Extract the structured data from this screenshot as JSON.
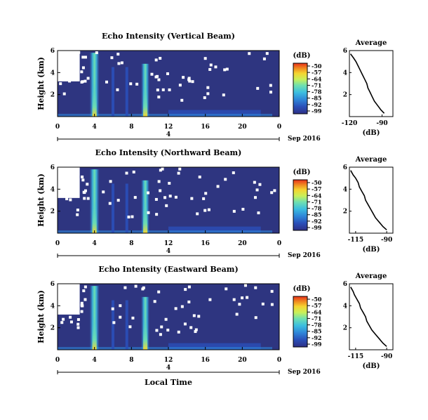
{
  "figure": {
    "xlabel_bottom": "Local Time",
    "day_tick": "4",
    "date_label": "Sep 2016",
    "height_label": "Height (km)",
    "unit_label": "(dB)",
    "average_title": "Average"
  },
  "colors": {
    "background_field": "#2e3580",
    "colorscale": [
      "#2e2f86",
      "#2a4fb8",
      "#2f86d8",
      "#3cbde0",
      "#6fe0b0",
      "#c8f05a",
      "#f5d530",
      "#f08a20",
      "#e8301a"
    ]
  },
  "chart_data": [
    {
      "type": "heatmap",
      "title": "Echo Intensity (Vertical Beam)",
      "xlabel": "",
      "ylabel": "Height (km)",
      "xlim": [
        0,
        24
      ],
      "ylim": [
        0,
        6
      ],
      "xticks": [
        "0",
        "4",
        "8",
        "12",
        "16",
        "20",
        "0"
      ],
      "yticks": [
        "2",
        "4",
        "6"
      ],
      "colorbar": {
        "label": "(dB)",
        "ticks": [
          "-50",
          "-57",
          "-64",
          "-71",
          "-78",
          "-85",
          "-92",
          "-99"
        ],
        "range": [
          -99,
          -50
        ]
      },
      "vertical_streaks_hours": [
        4,
        9.5
      ],
      "average_profile": {
        "title": "Average",
        "xlabel": "(dB)",
        "xticks": [
          "-120",
          "-90"
        ],
        "xlim": [
          -120,
          -80
        ],
        "yticks": [
          "2",
          "4",
          "6"
        ],
        "ylim": [
          0,
          6
        ],
        "heights_km": [
          5.7,
          5.3,
          5.0,
          4.6,
          4.2,
          3.8,
          3.4,
          3.0,
          2.6,
          2.2,
          1.8,
          1.4,
          1.0,
          0.6,
          0.3
        ],
        "values_db": [
          -119,
          -116,
          -114,
          -112,
          -110,
          -108,
          -106,
          -104,
          -103,
          -101,
          -99,
          -97,
          -94,
          -91,
          -88
        ]
      }
    },
    {
      "type": "heatmap",
      "title": "Echo Intensity (Northward Beam)",
      "xlabel": "",
      "ylabel": "Height (km)",
      "xlim": [
        0,
        24
      ],
      "ylim": [
        0,
        6
      ],
      "xticks": [
        "0",
        "4",
        "8",
        "12",
        "16",
        "20",
        "0"
      ],
      "yticks": [
        "2",
        "4",
        "6"
      ],
      "colorbar": {
        "label": "(dB)",
        "ticks": [
          "-50",
          "-57",
          "-64",
          "-71",
          "-78",
          "-85",
          "-92",
          "-99"
        ],
        "range": [
          -99,
          -50
        ]
      },
      "vertical_streaks_hours": [
        4,
        9.5
      ],
      "average_profile": {
        "title": "Average",
        "xlabel": "(dB)",
        "xticks": [
          "-115",
          "-90"
        ],
        "xlim": [
          -120,
          -85
        ],
        "yticks": [
          "2",
          "4",
          "6"
        ],
        "ylim": [
          0,
          6
        ],
        "heights_km": [
          5.7,
          5.3,
          5.0,
          4.6,
          4.2,
          3.8,
          3.4,
          3.0,
          2.6,
          2.2,
          1.8,
          1.4,
          1.0,
          0.6,
          0.3
        ],
        "values_db": [
          -119,
          -117,
          -115,
          -113,
          -112,
          -110,
          -108,
          -107,
          -105,
          -103,
          -101,
          -99,
          -96,
          -93,
          -90
        ]
      }
    },
    {
      "type": "heatmap",
      "title": "Echo Intensity (Eastward Beam)",
      "xlabel": "Local Time",
      "ylabel": "Height (km)",
      "xlim": [
        0,
        24
      ],
      "ylim": [
        0,
        6
      ],
      "xticks": [
        "0",
        "4",
        "8",
        "12",
        "16",
        "20",
        "0"
      ],
      "yticks": [
        "2",
        "4",
        "6"
      ],
      "colorbar": {
        "label": "(dB)",
        "ticks": [
          "-50",
          "-57",
          "-64",
          "-71",
          "-78",
          "-85",
          "-92",
          "-99"
        ],
        "range": [
          -99,
          -50
        ]
      },
      "vertical_streaks_hours": [
        4,
        9.5
      ],
      "average_profile": {
        "title": "Average",
        "xlabel": "(dB)",
        "xticks": [
          "-115",
          "-90"
        ],
        "xlim": [
          -120,
          -85
        ],
        "yticks": [
          "2",
          "4",
          "6"
        ],
        "ylim": [
          0,
          6
        ],
        "heights_km": [
          5.7,
          5.3,
          5.0,
          4.6,
          4.2,
          3.8,
          3.4,
          3.0,
          2.6,
          2.2,
          1.8,
          1.4,
          1.0,
          0.6,
          0.3
        ],
        "values_db": [
          -119,
          -117,
          -116,
          -114,
          -112,
          -111,
          -109,
          -107,
          -106,
          -104,
          -102,
          -99,
          -96,
          -93,
          -90
        ]
      }
    }
  ]
}
